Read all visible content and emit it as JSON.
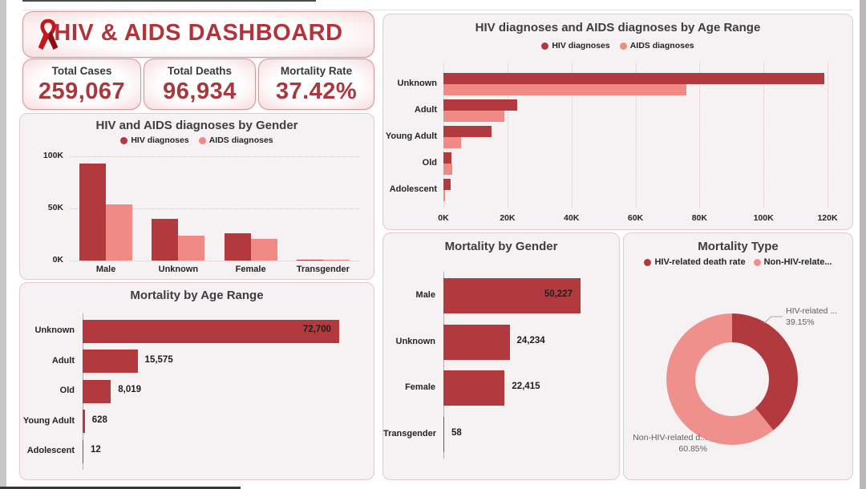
{
  "colors": {
    "hiv_series": "#b23a3f",
    "aids_series": "#ef8a85",
    "donut_hiv": "#b23a3f",
    "donut_non_hiv": "#f0908c",
    "panel_bg": "#f6f1f2",
    "panel_border": "#e6caca",
    "title_red": "#b2333a",
    "kpi_value_red": "#a9373b",
    "text_dark": "#252423",
    "callout_gray": "#605e5c"
  },
  "header": {
    "title": "HIV & AIDS DASHBOARD",
    "icon": "aids-ribbon-icon"
  },
  "kpis": [
    {
      "label": "Total Cases",
      "value": "259,067"
    },
    {
      "label": "Total Deaths",
      "value": "96,934"
    },
    {
      "label": "Mortality Rate",
      "value": "37.42%"
    }
  ],
  "chart_data": [
    {
      "id": "gender_diagnoses",
      "type": "bar",
      "orientation": "vertical",
      "title": "HIV and AIDS diagnoses by Gender",
      "categories": [
        "Male",
        "Unknown",
        "Female",
        "Transgender"
      ],
      "series": [
        {
          "name": "HIV diagnoses",
          "color": "#b23a3f",
          "values": [
            93000,
            40000,
            26000,
            300
          ]
        },
        {
          "name": "AIDS diagnoses",
          "color": "#ef8a85",
          "values": [
            54000,
            24000,
            20500,
            200
          ]
        }
      ],
      "yticks": {
        "labels": [
          "0K",
          "50K",
          "100K"
        ],
        "values": [
          0,
          50000,
          100000
        ]
      },
      "ylim": [
        0,
        100000
      ],
      "grid": "dotted-horizontal",
      "legend_position": "top"
    },
    {
      "id": "age_diagnoses",
      "type": "bar",
      "orientation": "horizontal",
      "title": "HIV diagnoses and AIDS diagnoses by Age Range",
      "categories": [
        "Unknown",
        "Adult",
        "Young Adult",
        "Old",
        "Adolescent"
      ],
      "series": [
        {
          "name": "HIV diagnoses",
          "color": "#b23a3f",
          "values": [
            119000,
            23000,
            15000,
            2500,
            2300
          ]
        },
        {
          "name": "AIDS diagnoses",
          "color": "#ef8a85",
          "values": [
            76000,
            19000,
            5500,
            2700,
            500
          ]
        }
      ],
      "xticks": {
        "labels": [
          "0K",
          "20K",
          "40K",
          "60K",
          "80K",
          "100K",
          "120K"
        ],
        "values": [
          0,
          20000,
          40000,
          60000,
          80000,
          100000,
          120000
        ]
      },
      "xlim": [
        0,
        120000
      ],
      "grid": "dotted-vertical",
      "legend_position": "top"
    },
    {
      "id": "mortality_age",
      "type": "bar",
      "orientation": "horizontal",
      "title": "Mortality by Age Range",
      "categories": [
        "Unknown",
        "Adult",
        "Old",
        "Young Adult",
        "Adolescent"
      ],
      "values": [
        72700,
        15575,
        8019,
        628,
        12
      ],
      "value_labels": [
        "72,700",
        "15,575",
        "8,019",
        "628",
        "12"
      ],
      "color": "#b23a3f",
      "xlim": [
        0,
        78000
      ],
      "grid": "off"
    },
    {
      "id": "mortality_gender",
      "type": "bar",
      "orientation": "horizontal",
      "title": "Mortality by Gender",
      "categories": [
        "Male",
        "Unknown",
        "Female",
        "Transgender"
      ],
      "values": [
        50227,
        24234,
        22415,
        58
      ],
      "value_labels": [
        "50,227",
        "24,234",
        "22,415",
        "58"
      ],
      "color": "#b23a3f",
      "xlim": [
        0,
        55000
      ],
      "grid": "off"
    },
    {
      "id": "mortality_type",
      "type": "pie",
      "title": "Mortality Type",
      "legend": [
        "HIV-related death rate",
        "Non-HIV-relate..."
      ],
      "slices": [
        {
          "name": "HIV-related death rate",
          "pct": 39.15,
          "color": "#b23a3f"
        },
        {
          "name": "Non-HIV-related death rate",
          "pct": 60.85,
          "color": "#f0908c"
        }
      ],
      "callouts": [
        {
          "line1": "HIV-related ...",
          "line2": "39.15%"
        },
        {
          "line1": "Non-HIV-related d...",
          "line2": "60.85%"
        }
      ],
      "legend_position": "top"
    }
  ]
}
